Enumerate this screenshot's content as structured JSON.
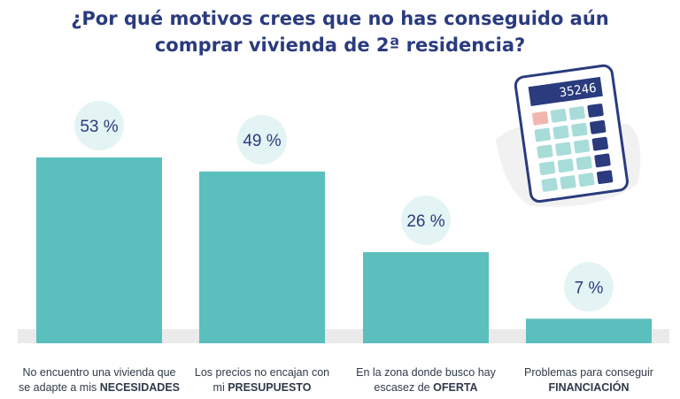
{
  "title": {
    "line1": "¿Por qué motivos crees que no has conseguido aún",
    "line2": "comprar vivienda de 2ª residencia?"
  },
  "calculator": {
    "display": "35246"
  },
  "colors": {
    "bar": "#5bbfbd",
    "bubble": "#e4f4f4",
    "value_text": "#2a3b7e",
    "title": "#2a3b7e",
    "baseline": "#eaeaea"
  },
  "chart_data": {
    "type": "bar",
    "title": "¿Por qué motivos crees que no has conseguido aún comprar vivienda de 2ª residencia?",
    "categories": [
      "No encuentro una vivienda que se adapte a mis NECESIDADES",
      "Los precios no encajan con mi PRESUPUESTO",
      "En la zona donde busco hay escasez de OFERTA",
      "Problemas para conseguir FINANCIACIÓN"
    ],
    "values": [
      53,
      49,
      26,
      7
    ],
    "value_labels": [
      "53 %",
      "49 %",
      "26 %",
      "7 %"
    ],
    "category_labels": [
      {
        "line1": "No encuentro una vivienda que",
        "line2_plain": "se adapte a mis ",
        "line2_bold": "NECESIDADES"
      },
      {
        "line1": "Los precios no encajan con",
        "line2_plain": "mi ",
        "line2_bold": "PRESUPUESTO"
      },
      {
        "line1": "En la zona donde busco hay",
        "line2_plain": "escasez de ",
        "line2_bold": "OFERTA"
      },
      {
        "line1": "Problemas para conseguir",
        "line2_plain": "",
        "line2_bold": "FINANCIACIÓN"
      }
    ],
    "unit": "%",
    "ylim": [
      0,
      53
    ],
    "grid": false,
    "legend": "none"
  }
}
